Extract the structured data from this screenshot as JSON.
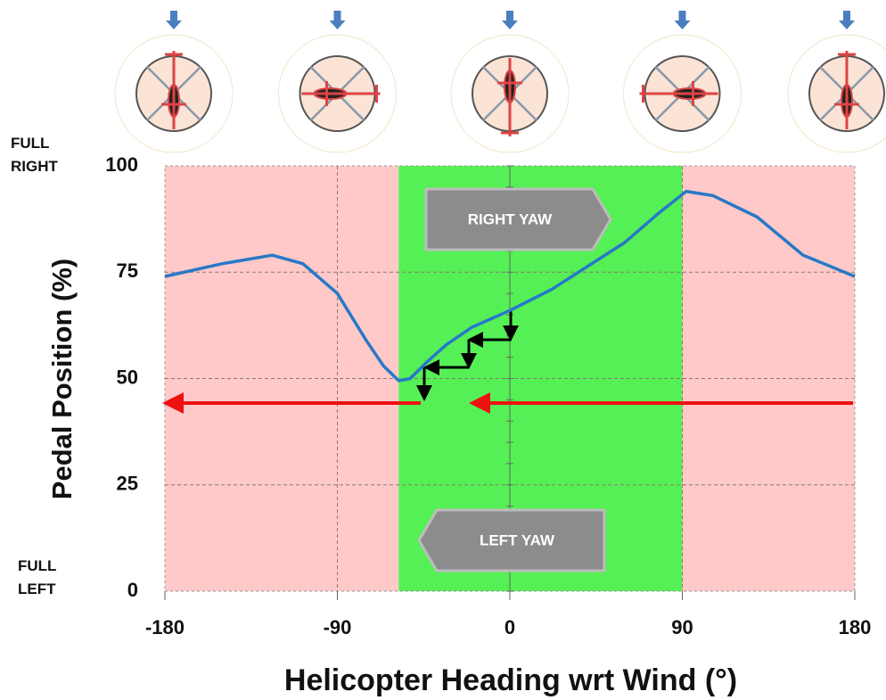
{
  "chart_data": {
    "type": "line",
    "x_label": "Helicopter Heading wrt Wind (°)",
    "y_label": "Pedal Position (%)",
    "x": [
      -180,
      -150,
      -124,
      -108,
      -90,
      -75,
      -66,
      -58,
      -52,
      -43,
      -33,
      -20,
      0,
      22,
      60,
      78,
      92,
      106,
      129,
      153,
      180
    ],
    "series": [
      {
        "color": "#2878c8",
        "values": [
          74,
          77,
          79,
          77,
          70,
          59,
          53,
          49.5,
          50,
          54,
          58,
          62,
          66,
          71,
          82,
          89,
          94,
          93,
          88,
          79,
          74
        ]
      }
    ],
    "xlim": [
      -180,
      180
    ],
    "xticks": [
      -180,
      -90,
      0,
      90,
      180
    ],
    "ylim": [
      0,
      100
    ],
    "yticks": [
      0,
      25,
      50,
      75,
      100
    ],
    "grid": true,
    "regions": [
      {
        "from": -180,
        "to": -58,
        "color": "#ffc9c9"
      },
      {
        "from": -58,
        "to": 90,
        "color": "#55f055"
      },
      {
        "from": 90,
        "to": 180,
        "color": "#ffc9c9"
      }
    ],
    "annotations": {
      "full_right": "FULL RIGHT",
      "full_left": "FULL LEFT",
      "right_yaw": "RIGHT YAW",
      "left_yaw": "LEFT YAW"
    }
  }
}
